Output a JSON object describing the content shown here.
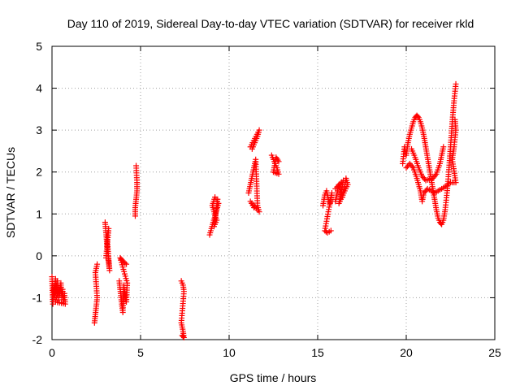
{
  "chart_data": {
    "type": "scatter",
    "title": "Day 110 of 2019, Sidereal Day-to-day VTEC variation (SDTVAR) for receiver rkld",
    "xlabel": "GPS time / hours",
    "ylabel": "SDTVAR / TECUs",
    "xlim": [
      0,
      25
    ],
    "ylim": [
      -2,
      5
    ],
    "xticks": [
      0,
      5,
      10,
      15,
      20,
      25
    ],
    "yticks": [
      -2,
      -1,
      0,
      1,
      2,
      3,
      4,
      5
    ],
    "xtick_labels": [
      "0",
      "5",
      "10",
      "15",
      "20",
      "25"
    ],
    "ytick_labels": [
      "-2",
      "-1",
      "0",
      "1",
      "2",
      "3",
      "4",
      "5"
    ],
    "grid": true,
    "marker": "+",
    "color": "#ff0000",
    "clusters": [
      {
        "points": [
          [
            0.0,
            -0.5
          ],
          [
            0.05,
            -1.15
          ],
          [
            0.1,
            -0.7
          ],
          [
            0.15,
            -1.0
          ],
          [
            0.2,
            -0.55
          ],
          [
            0.25,
            -0.85
          ],
          [
            0.3,
            -0.6
          ],
          [
            0.35,
            -1.05
          ],
          [
            0.4,
            -0.75
          ],
          [
            0.45,
            -0.95
          ],
          [
            0.5,
            -0.65
          ],
          [
            0.55,
            -1.0
          ],
          [
            0.6,
            -0.8
          ],
          [
            0.65,
            -1.1
          ],
          [
            0.7,
            -0.9
          ],
          [
            0.75,
            -1.15
          ],
          [
            0.2,
            -1.1
          ],
          [
            0.3,
            -0.9
          ],
          [
            0.1,
            -0.85
          ]
        ]
      },
      {
        "points": [
          [
            2.4,
            -1.6
          ],
          [
            2.45,
            -1.4
          ],
          [
            2.5,
            -1.2
          ],
          [
            2.55,
            -1.0
          ],
          [
            2.45,
            -0.4
          ],
          [
            2.5,
            -0.3
          ],
          [
            2.55,
            -0.2
          ]
        ]
      },
      {
        "points": [
          [
            3.0,
            0.8
          ],
          [
            3.05,
            0.55
          ],
          [
            3.1,
            0.3
          ],
          [
            3.15,
            0.1
          ],
          [
            3.2,
            -0.15
          ],
          [
            3.25,
            -0.35
          ],
          [
            3.1,
            0.45
          ],
          [
            3.2,
            0.65
          ],
          [
            3.05,
            -0.05
          ]
        ]
      },
      {
        "points": [
          [
            3.8,
            -0.6
          ],
          [
            3.85,
            -0.8
          ],
          [
            3.9,
            -1.0
          ],
          [
            3.95,
            -1.2
          ],
          [
            4.0,
            -1.35
          ],
          [
            4.05,
            -0.7
          ],
          [
            4.1,
            -0.9
          ],
          [
            4.2,
            -1.1
          ],
          [
            4.25,
            -0.65
          ],
          [
            3.85,
            -0.05
          ],
          [
            3.95,
            -0.1
          ],
          [
            4.05,
            -0.15
          ],
          [
            4.2,
            -0.2
          ]
        ]
      },
      {
        "points": [
          [
            4.75,
            2.15
          ],
          [
            4.8,
            1.75
          ],
          [
            4.8,
            1.55
          ],
          [
            4.75,
            1.35
          ],
          [
            4.7,
            1.15
          ],
          [
            4.7,
            0.95
          ]
        ]
      },
      {
        "points": [
          [
            7.3,
            -0.6
          ],
          [
            7.4,
            -0.7
          ],
          [
            7.45,
            -0.85
          ],
          [
            7.3,
            -1.6
          ],
          [
            7.35,
            -1.7
          ],
          [
            7.4,
            -1.8
          ],
          [
            7.45,
            -1.95
          ],
          [
            7.35,
            -1.9
          ]
        ]
      },
      {
        "points": [
          [
            8.9,
            0.5
          ],
          [
            9.0,
            0.65
          ],
          [
            9.1,
            0.8
          ],
          [
            9.2,
            0.95
          ],
          [
            9.3,
            1.1
          ],
          [
            9.4,
            1.25
          ],
          [
            9.2,
            1.4
          ],
          [
            9.05,
            1.2
          ],
          [
            9.3,
            0.85
          ],
          [
            9.15,
            0.7
          ],
          [
            9.35,
            1.35
          ]
        ]
      },
      {
        "points": [
          [
            11.1,
            1.5
          ],
          [
            11.2,
            1.7
          ],
          [
            11.3,
            1.9
          ],
          [
            11.4,
            2.1
          ],
          [
            11.5,
            2.3
          ],
          [
            11.6,
            1.2
          ],
          [
            11.7,
            1.05
          ],
          [
            11.2,
            1.3
          ],
          [
            11.4,
            1.15
          ],
          [
            11.3,
            2.55
          ],
          [
            11.45,
            2.7
          ],
          [
            11.6,
            2.85
          ],
          [
            11.7,
            3.0
          ],
          [
            11.2,
            2.6
          ]
        ]
      },
      {
        "points": [
          [
            12.4,
            2.4
          ],
          [
            12.5,
            2.3
          ],
          [
            12.6,
            2.2
          ],
          [
            12.7,
            2.1
          ],
          [
            12.8,
            1.95
          ],
          [
            12.5,
            2.0
          ],
          [
            12.65,
            2.35
          ],
          [
            12.8,
            2.25
          ]
        ]
      },
      {
        "points": [
          [
            15.3,
            1.2
          ],
          [
            15.4,
            1.45
          ],
          [
            15.5,
            1.55
          ],
          [
            15.6,
            1.35
          ],
          [
            15.7,
            1.25
          ],
          [
            15.8,
            1.5
          ],
          [
            15.4,
            0.6
          ],
          [
            15.55,
            0.55
          ],
          [
            15.75,
            0.6
          ]
        ]
      },
      {
        "points": [
          [
            16.0,
            1.3
          ],
          [
            16.1,
            1.5
          ],
          [
            16.2,
            1.7
          ],
          [
            16.3,
            1.55
          ],
          [
            16.4,
            1.4
          ],
          [
            16.5,
            1.6
          ],
          [
            16.6,
            1.85
          ],
          [
            16.7,
            1.7
          ],
          [
            16.2,
            1.25
          ],
          [
            16.45,
            1.8
          ],
          [
            16.0,
            1.6
          ]
        ]
      },
      {
        "points": [
          [
            19.8,
            2.2
          ],
          [
            19.9,
            2.6
          ],
          [
            20.0,
            2.4
          ],
          [
            20.1,
            2.7
          ],
          [
            20.2,
            2.9
          ],
          [
            20.3,
            3.05
          ],
          [
            20.4,
            3.2
          ],
          [
            20.5,
            3.3
          ],
          [
            20.6,
            3.35
          ],
          [
            20.7,
            3.3
          ],
          [
            20.8,
            3.2
          ],
          [
            20.9,
            3.05
          ],
          [
            21.0,
            2.85
          ],
          [
            21.1,
            2.6
          ],
          [
            21.2,
            2.35
          ],
          [
            21.3,
            2.1
          ],
          [
            21.4,
            1.85
          ],
          [
            21.5,
            1.6
          ],
          [
            21.6,
            1.35
          ],
          [
            21.7,
            1.1
          ],
          [
            21.8,
            0.9
          ],
          [
            21.9,
            0.8
          ],
          [
            22.0,
            0.75
          ],
          [
            22.1,
            0.85
          ],
          [
            22.2,
            1.1
          ],
          [
            22.3,
            1.5
          ],
          [
            22.4,
            2.0
          ],
          [
            22.5,
            2.6
          ],
          [
            22.6,
            3.2
          ],
          [
            22.7,
            3.7
          ],
          [
            22.8,
            4.1
          ]
        ]
      },
      {
        "points": [
          [
            20.0,
            2.1
          ],
          [
            20.2,
            2.2
          ],
          [
            20.4,
            2.1
          ],
          [
            20.6,
            1.85
          ],
          [
            20.8,
            1.55
          ],
          [
            20.9,
            1.3
          ],
          [
            21.0,
            1.5
          ],
          [
            21.2,
            1.6
          ],
          [
            21.4,
            1.55
          ],
          [
            21.6,
            1.5
          ],
          [
            21.8,
            1.55
          ],
          [
            22.0,
            1.6
          ],
          [
            22.2,
            1.65
          ],
          [
            22.5,
            1.75
          ],
          [
            22.8,
            1.75
          ],
          [
            22.6,
            2.3
          ],
          [
            22.7,
            2.6
          ],
          [
            22.8,
            3.0
          ],
          [
            22.75,
            3.25
          ],
          [
            20.3,
            2.55
          ],
          [
            20.5,
            2.35
          ],
          [
            20.7,
            2.1
          ],
          [
            20.9,
            1.9
          ],
          [
            21.1,
            1.8
          ],
          [
            21.5,
            1.85
          ],
          [
            21.7,
            1.95
          ],
          [
            21.9,
            2.2
          ],
          [
            22.1,
            2.6
          ]
        ]
      }
    ]
  }
}
